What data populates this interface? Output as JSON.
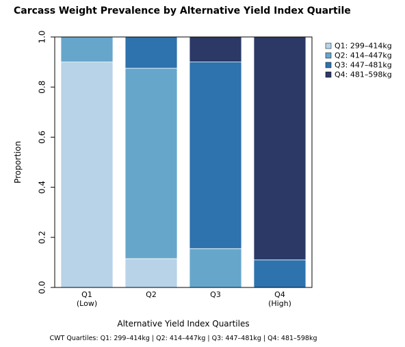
{
  "chart_data": {
    "type": "bar",
    "stacked": true,
    "title": "Carcass Weight Prevalence by Alternative Yield Index Quartile",
    "xlabel": "Alternative Yield Index Quartiles",
    "ylabel": "Proportion",
    "ylim": [
      0,
      1
    ],
    "yticks": [
      "0.0",
      "0.2",
      "0.4",
      "0.6",
      "0.8",
      "1.0"
    ],
    "categories": [
      {
        "line1": "Q1",
        "line2": "(Low)"
      },
      {
        "line1": "Q2",
        "line2": ""
      },
      {
        "line1": "Q3",
        "line2": ""
      },
      {
        "line1": "Q4",
        "line2": "(High)"
      }
    ],
    "series": [
      {
        "name": "Q1: 299–414kg",
        "color": "#b8d3e8",
        "values": [
          0.9,
          0.115,
          0.0,
          0.0
        ]
      },
      {
        "name": "Q2: 414–447kg",
        "color": "#66a6cb",
        "values": [
          0.1,
          0.76,
          0.155,
          0.0
        ]
      },
      {
        "name": "Q3: 447–481kg",
        "color": "#2e72ae",
        "values": [
          0.0,
          0.125,
          0.745,
          0.11
        ]
      },
      {
        "name": "Q4: 481–598kg",
        "color": "#2c3966",
        "values": [
          0.0,
          0.0,
          0.1,
          0.89
        ]
      }
    ],
    "legend_position": "top-right",
    "grid": false,
    "caption": "CWT Quartiles: Q1: 299–414kg  |  Q2: 414–447kg  |  Q3: 447–481kg  |  Q4: 481–598kg"
  }
}
